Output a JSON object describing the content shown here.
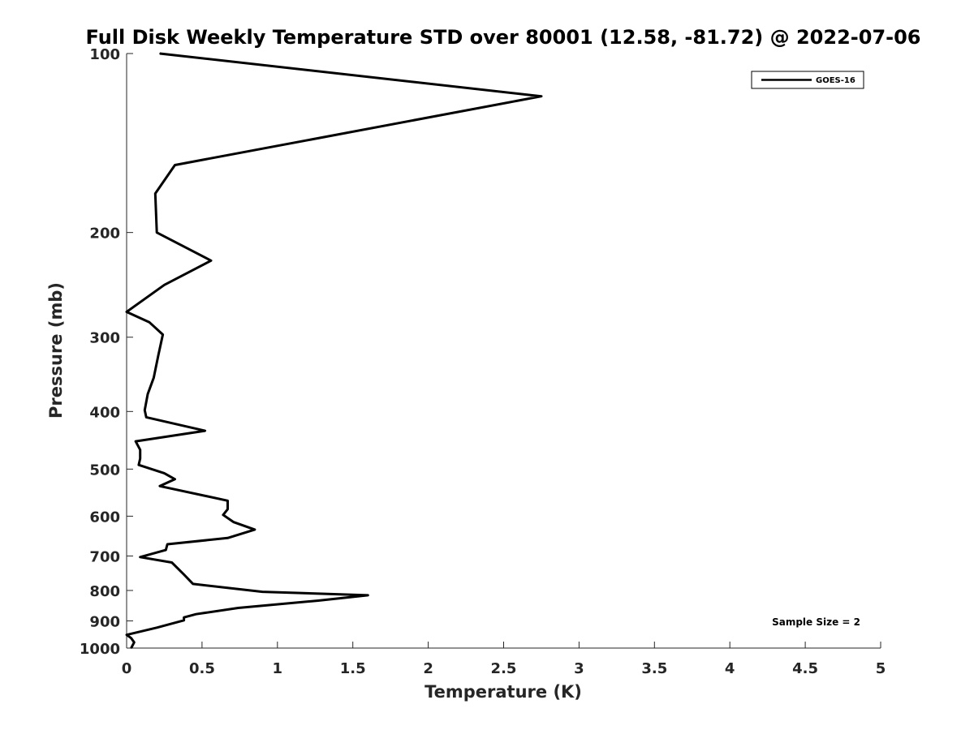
{
  "chart_data": {
    "type": "line",
    "title": "Full Disk Weekly Temperature STD over 80001 (12.58, -81.72) @ 2022-07-06",
    "xlabel": "Temperature (K)",
    "ylabel": "Pressure (mb)",
    "xlim": [
      0,
      5
    ],
    "ylim": [
      100,
      1000
    ],
    "y_scale": "log",
    "y_reversed": true,
    "x_ticks": [
      0,
      0.5,
      1,
      1.5,
      2,
      2.5,
      3,
      3.5,
      4,
      4.5,
      5
    ],
    "x_tick_labels": [
      "0",
      "0.5",
      "1",
      "1.5",
      "2",
      "2.5",
      "3",
      "3.5",
      "4",
      "4.5",
      "5"
    ],
    "y_ticks": [
      100,
      200,
      300,
      400,
      500,
      600,
      700,
      800,
      900,
      1000
    ],
    "y_tick_labels": [
      "100",
      "200",
      "300",
      "400",
      "500",
      "600",
      "700",
      "800",
      "900",
      "1000"
    ],
    "grid": false,
    "legend_position": "top-right",
    "annotation": "Sample Size = 2",
    "series": [
      {
        "name": "GOES-16",
        "color": "#000000",
        "points": [
          [
            0.22,
            100
          ],
          [
            2.75,
            118
          ],
          [
            0.32,
            154
          ],
          [
            0.19,
            172
          ],
          [
            0.2,
            200
          ],
          [
            0.56,
            223
          ],
          [
            0.25,
            245
          ],
          [
            0.0,
            272
          ],
          [
            0.15,
            283
          ],
          [
            0.24,
            297
          ],
          [
            0.21,
            322
          ],
          [
            0.18,
            351
          ],
          [
            0.14,
            374
          ],
          [
            0.12,
            398
          ],
          [
            0.13,
            409
          ],
          [
            0.52,
            431
          ],
          [
            0.06,
            449
          ],
          [
            0.09,
            464
          ],
          [
            0.09,
            480
          ],
          [
            0.08,
            492
          ],
          [
            0.25,
            508
          ],
          [
            0.32,
            520
          ],
          [
            0.22,
            534
          ],
          [
            0.67,
            565
          ],
          [
            0.67,
            584
          ],
          [
            0.64,
            597
          ],
          [
            0.71,
            614
          ],
          [
            0.85,
            632
          ],
          [
            0.67,
            653
          ],
          [
            0.27,
            669
          ],
          [
            0.26,
            684
          ],
          [
            0.09,
            703
          ],
          [
            0.3,
            718
          ],
          [
            0.38,
            752
          ],
          [
            0.44,
            780
          ],
          [
            0.9,
            804
          ],
          [
            1.6,
            815
          ],
          [
            1.27,
            832
          ],
          [
            0.74,
            856
          ],
          [
            0.46,
            877
          ],
          [
            0.38,
            888
          ],
          [
            0.38,
            898
          ],
          [
            0.2,
            924
          ],
          [
            0.0,
            950
          ],
          [
            0.03,
            962
          ],
          [
            0.05,
            978
          ],
          [
            0.03,
            1000
          ]
        ]
      }
    ]
  }
}
